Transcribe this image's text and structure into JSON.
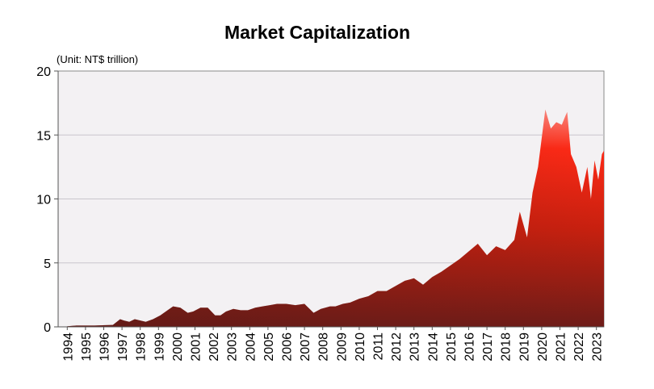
{
  "chart_data": {
    "type": "area",
    "title": "Market Capitalization",
    "unit_label": "(Unit: NT$  trillion)",
    "xlabel": "",
    "ylabel": "",
    "ylim": [
      0,
      20
    ],
    "xlim": [
      1994,
      2023.3
    ],
    "y_ticks": [
      "0",
      "5",
      "10",
      "15",
      "20"
    ],
    "x_ticks": [
      "1994",
      "1995",
      "1996",
      "1997",
      "1998",
      "1999",
      "2000",
      "2001",
      "2002",
      "2003",
      "2004",
      "2005",
      "2006",
      "2007",
      "2008",
      "2009",
      "2010",
      "2011",
      "2012",
      "2013",
      "2014",
      "2015",
      "2016",
      "2017",
      "2018",
      "2019",
      "2020",
      "2021",
      "2022",
      "2023"
    ],
    "grid": true,
    "x": [
      0.5,
      1.0,
      2.0,
      3.0,
      3.4,
      3.6,
      3.9,
      4.2,
      4.5,
      4.8,
      5.2,
      5.6,
      6.0,
      6.3,
      6.7,
      7.1,
      7.4,
      7.8,
      8.2,
      8.6,
      8.9,
      9.2,
      9.6,
      10.0,
      10.4,
      10.8,
      11.2,
      11.6,
      12.0,
      12.5,
      13.0,
      13.5,
      14.0,
      14.4,
      14.9,
      15.2,
      15.6,
      16.0,
      16.5,
      17.0,
      17.5,
      18.0,
      18.5,
      19.0,
      19.5,
      20.0,
      20.5,
      21.0,
      21.5,
      22.0,
      22.5,
      23.0,
      23.5,
      24.0,
      24.5,
      25.0,
      25.3,
      25.7,
      26.0,
      26.3,
      26.7,
      27.0,
      27.3,
      27.6,
      27.8,
      27.9,
      28.1,
      28.4,
      28.7,
      29.0,
      29.2,
      29.4,
      29.6,
      29.8,
      30.0,
      30.2,
      30.3
    ],
    "values": [
      0.05,
      0.1,
      0.1,
      0.15,
      0.6,
      0.5,
      0.4,
      0.6,
      0.5,
      0.4,
      0.6,
      0.9,
      1.3,
      1.6,
      1.5,
      1.1,
      1.2,
      1.5,
      1.5,
      0.9,
      0.9,
      1.2,
      1.4,
      1.3,
      1.3,
      1.5,
      1.6,
      1.7,
      1.8,
      1.8,
      1.7,
      1.8,
      1.1,
      1.4,
      1.6,
      1.6,
      1.8,
      1.9,
      2.2,
      2.4,
      2.8,
      2.8,
      3.2,
      3.6,
      3.8,
      3.3,
      3.9,
      4.3,
      4.8,
      5.3,
      5.9,
      6.5,
      5.6,
      6.3,
      6.0,
      6.8,
      9.0,
      7.0,
      10.5,
      12.5,
      17.0,
      15.5,
      16.0,
      15.8,
      16.5,
      16.8,
      13.5,
      12.5,
      10.5,
      12.5,
      10.0,
      13.0,
      11.5,
      13.5,
      14.0,
      13.5,
      13.0
    ]
  }
}
